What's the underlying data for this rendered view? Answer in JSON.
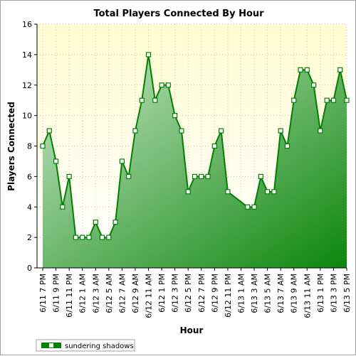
{
  "chart_data": {
    "type": "area",
    "title": "Total Players Connected By Hour",
    "xlabel": "Hour",
    "ylabel": "Players Connected",
    "ylim": [
      0,
      16
    ],
    "yticks": [
      0,
      2,
      4,
      6,
      8,
      10,
      12,
      14,
      16
    ],
    "grid": true,
    "legend_position": "bottom-left",
    "tick_labels": [
      "6/11 7 PM",
      "6/11 9 PM",
      "6/11 11 PM",
      "6/12 1 AM",
      "6/12 3 AM",
      "6/12 5 AM",
      "6/12 7 AM",
      "6/12 9 AM",
      "6/12 11 AM",
      "6/12 1 PM",
      "6/12 3 PM",
      "6/12 5 PM",
      "6/12 7 PM",
      "6/12 9 PM",
      "6/12 11 PM",
      "6/13 1 AM",
      "6/13 3 AM",
      "6/13 5 AM",
      "6/13 7 AM",
      "6/13 9 AM",
      "6/13 11 AM",
      "6/13 1 PM",
      "6/13 3 PM",
      "6/13 5 PM"
    ],
    "x_start": "6/11 7 PM",
    "x_step_hours": 1,
    "series": [
      {
        "name": "sundering shadows",
        "values": [
          8,
          9,
          7,
          4,
          6,
          2,
          2,
          2,
          3,
          2,
          2,
          3,
          7,
          6,
          9,
          11,
          14,
          11,
          12,
          12,
          10,
          9,
          5,
          6,
          6,
          6,
          8,
          9,
          5,
          null,
          null,
          4,
          4,
          6,
          5,
          5,
          9,
          8,
          11,
          13,
          13,
          12,
          9,
          11,
          11,
          13,
          11
        ],
        "color": "#008000"
      }
    ]
  },
  "colors": {
    "plot_bg_top": "#fffbd0",
    "plot_bg_bottom": "#ffffff",
    "area_light": "#c8e6c8",
    "area_dark": "#008000",
    "line": "#008000",
    "grid": "#c8c8c8"
  }
}
